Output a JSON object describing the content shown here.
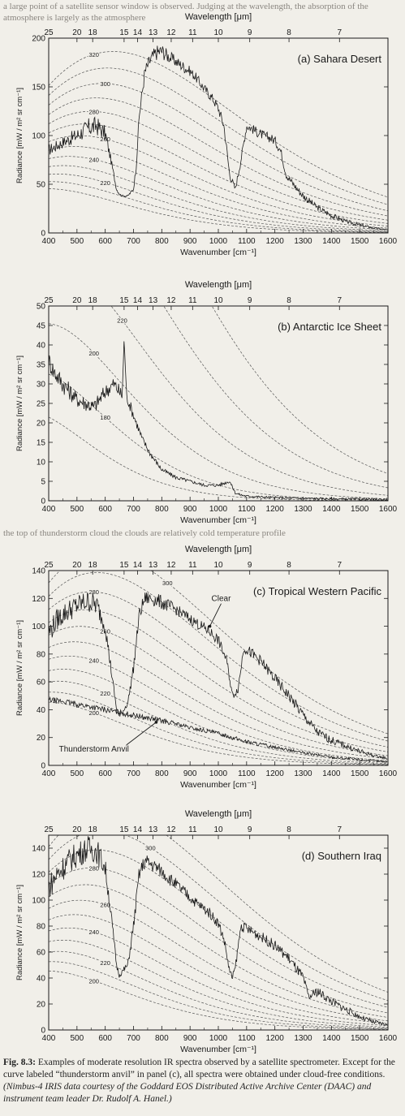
{
  "background_text": {
    "page_top": "a large point of a satellite sensor window is observed. Judging at the wavelength, the absorption of the atmosphere is largely as the atmosphere",
    "between_bc": "the top of thunderstorm cloud the clouds are relatively cold temperature profile"
  },
  "caption": {
    "figure_label": "Fig. 8.3:",
    "text": " Examples of moderate resolution IR spectra observed by a satellite spectrometer. Except for the curve labeled “thunderstorm anvil” in panel (c), all spectra were obtained under cloud-free conditions. ",
    "credit": "(Nimbus-4 IRIS data courtesy of the Goddard EOS Distributed Active Archive Center (DAAC) and instrument team leader Dr. Rudolf A. Hanel.)"
  },
  "colors": {
    "background": "#f1efe9",
    "ink": "#1a1a1a",
    "guide": "#555555"
  },
  "chart_data": [
    {
      "type": "line",
      "title": "(a) Sahara Desert",
      "xlabel": "Wavenumber [cm⁻¹]",
      "ylabel": "Radiance [mW / m² sr cm⁻¹]",
      "top_axis_label": "Wavelength [μm]",
      "xlim": [
        400,
        1600
      ],
      "ylim": [
        0,
        200
      ],
      "x_ticks": [
        400,
        500,
        600,
        700,
        800,
        900,
        1000,
        1100,
        1200,
        1300,
        1400,
        1500,
        1600
      ],
      "y_ticks": [
        0,
        50,
        100,
        150,
        200
      ],
      "wavelength_ticks": [
        25,
        20,
        18,
        15,
        14,
        13,
        12,
        11,
        10,
        9,
        8,
        7
      ],
      "blackbody_temps_K": [
        200,
        210,
        220,
        230,
        240,
        250,
        260,
        270,
        280,
        290,
        300,
        310,
        320
      ],
      "blackbody_labels": [
        "220",
        "240",
        "260",
        "280",
        "300",
        "320"
      ],
      "grid": false,
      "series": [
        {
          "x": [
            400,
            450,
            500,
            540,
            570,
            600,
            620,
            640,
            650,
            660,
            680,
            700,
            710,
            720,
            740,
            760,
            780,
            800,
            820,
            840,
            860,
            880,
            900,
            920,
            940,
            960,
            980,
            1000,
            1020,
            1040,
            1060,
            1080,
            1100,
            1120,
            1140,
            1160,
            1180,
            1200,
            1220,
            1240,
            1260,
            1280,
            1300,
            1350,
            1400,
            1450,
            1500,
            1550,
            1600
          ],
          "y": [
            85,
            93,
            100,
            108,
            110,
            102,
            75,
            45,
            40,
            38,
            38,
            45,
            70,
            120,
            165,
            178,
            185,
            187,
            182,
            178,
            174,
            170,
            166,
            160,
            152,
            145,
            138,
            128,
            110,
            60,
            45,
            75,
            110,
            107,
            103,
            100,
            98,
            95,
            85,
            60,
            52,
            45,
            38,
            26,
            18,
            12,
            8,
            5,
            3
          ],
          "noise_amp": [
            6,
            6,
            8,
            10,
            10,
            8,
            4,
            2,
            1,
            1,
            1,
            2,
            4,
            6,
            8,
            8,
            8,
            8,
            7,
            6,
            6,
            6,
            5,
            5,
            5,
            5,
            5,
            5,
            6,
            4,
            3,
            4,
            5,
            5,
            5,
            5,
            5,
            5,
            5,
            4,
            4,
            4,
            4,
            3,
            3,
            2,
            2,
            1,
            1
          ]
        }
      ],
      "annotations": []
    },
    {
      "type": "line",
      "title": "(b) Antarctic Ice Sheet",
      "xlabel": "Wavenumber [cm⁻¹]",
      "ylabel": "Radiance [mW / m² sr cm⁻¹]",
      "top_axis_label": "Wavelength [μm]",
      "xlim": [
        400,
        1600
      ],
      "ylim": [
        0,
        50
      ],
      "x_ticks": [
        400,
        500,
        600,
        700,
        800,
        900,
        1000,
        1100,
        1200,
        1300,
        1400,
        1500,
        1600
      ],
      "y_ticks": [
        0,
        5,
        10,
        15,
        20,
        25,
        30,
        35,
        40,
        45,
        50
      ],
      "wavelength_ticks": [
        25,
        20,
        18,
        15,
        14,
        13,
        12,
        11,
        10,
        9,
        8,
        7
      ],
      "blackbody_temps_K": [
        160,
        180,
        200,
        220,
        240,
        260
      ],
      "blackbody_labels": [
        "180",
        "200",
        "220"
      ],
      "grid": false,
      "series": [
        {
          "x": [
            400,
            420,
            450,
            500,
            530,
            560,
            600,
            630,
            650,
            660,
            667,
            675,
            690,
            710,
            730,
            760,
            800,
            850,
            900,
            950,
            1000,
            1040,
            1060,
            1080,
            1100,
            1150,
            1200,
            1300,
            1400,
            1500,
            1600
          ],
          "y": [
            36,
            33,
            30,
            26,
            25,
            24,
            28,
            30,
            28,
            27,
            42,
            27,
            24,
            20,
            16,
            12,
            8,
            6,
            5,
            4,
            4,
            5,
            2,
            1.5,
            1.2,
            1,
            0.8,
            0.6,
            0.5,
            0.4,
            0.3
          ],
          "noise_amp": [
            2.5,
            2.5,
            2.5,
            2,
            2,
            2,
            2,
            2,
            2,
            2,
            0.5,
            1.5,
            1.5,
            1.2,
            1,
            0.8,
            0.6,
            0.5,
            0.4,
            0.4,
            0.4,
            0.4,
            0.3,
            0.3,
            0.3,
            0.3,
            0.3,
            0.3,
            0.3,
            0.3,
            0.3
          ]
        }
      ],
      "annotations": []
    },
    {
      "type": "line",
      "title": "(c) Tropical Western Pacific",
      "xlabel": "Wavenumber [cm⁻¹]",
      "ylabel": "Radiance [mW / m² sr cm⁻¹]",
      "top_axis_label": "Wavelength [μm]",
      "xlim": [
        400,
        1600
      ],
      "ylim": [
        0,
        140
      ],
      "x_ticks": [
        400,
        500,
        600,
        700,
        800,
        900,
        1000,
        1100,
        1200,
        1300,
        1400,
        1500,
        1600
      ],
      "y_ticks": [
        0,
        20,
        40,
        60,
        80,
        100,
        120,
        140
      ],
      "wavelength_ticks": [
        25,
        20,
        18,
        15,
        14,
        13,
        12,
        11,
        10,
        9,
        8,
        7
      ],
      "blackbody_temps_K": [
        200,
        210,
        220,
        230,
        240,
        250,
        260,
        270,
        280,
        290,
        300
      ],
      "blackbody_labels": [
        "200",
        "220",
        "240",
        "260",
        "280",
        "300"
      ],
      "grid": false,
      "series": [
        {
          "name": "Clear",
          "x": [
            400,
            430,
            460,
            500,
            540,
            570,
            600,
            620,
            640,
            650,
            660,
            680,
            700,
            720,
            740,
            760,
            790,
            820,
            850,
            880,
            910,
            940,
            970,
            1000,
            1030,
            1050,
            1070,
            1090,
            1120,
            1150,
            1200,
            1250,
            1300,
            1350,
            1400,
            1450,
            1500,
            1550,
            1600
          ],
          "y": [
            95,
            105,
            110,
            115,
            118,
            115,
            100,
            70,
            40,
            35,
            38,
            45,
            70,
            108,
            120,
            120,
            118,
            115,
            112,
            108,
            104,
            100,
            96,
            90,
            75,
            50,
            55,
            85,
            80,
            75,
            62,
            50,
            36,
            24,
            18,
            14,
            10,
            7,
            5
          ],
          "noise_amp": [
            8,
            8,
            8,
            8,
            8,
            8,
            6,
            4,
            2,
            1,
            2,
            2,
            4,
            5,
            5,
            5,
            5,
            5,
            4,
            4,
            4,
            4,
            4,
            4,
            3,
            3,
            3,
            4,
            4,
            4,
            4,
            4,
            4,
            3,
            3,
            2,
            2,
            1,
            1
          ]
        },
        {
          "name": "Thunderstorm Anvil",
          "x": [
            400,
            450,
            500,
            550,
            600,
            650,
            700,
            750,
            800,
            850,
            900,
            950,
            1000,
            1050,
            1100,
            1150,
            1200,
            1300,
            1400,
            1500,
            1600
          ],
          "y": [
            47,
            46,
            44,
            42,
            40,
            38,
            36,
            34,
            32,
            30,
            27,
            25,
            23,
            20,
            17,
            15,
            13,
            9,
            6,
            4,
            2.5
          ],
          "noise_amp": [
            2,
            2,
            2,
            2,
            2,
            2,
            2,
            2,
            2,
            1.5,
            1.5,
            1.5,
            1.5,
            1.5,
            1.5,
            1.5,
            1,
            1,
            1,
            1,
            0.5
          ]
        }
      ],
      "annotations": [
        {
          "text": "Clear",
          "x": 1010,
          "y": 118,
          "arrow_to": [
            970,
            100
          ]
        },
        {
          "text": "Thunderstorm Anvil",
          "x": 560,
          "y": 10,
          "arrow_to": [
            780,
            31
          ]
        }
      ]
    },
    {
      "type": "line",
      "title": "(d) Southern Iraq",
      "xlabel": "Wavenumber [cm⁻¹]",
      "ylabel": "Radiance [mW / m² sr cm⁻¹]",
      "top_axis_label": "Wavelength [μm]",
      "xlim": [
        400,
        1600
      ],
      "ylim": [
        0,
        150
      ],
      "x_ticks": [
        400,
        500,
        600,
        700,
        800,
        900,
        1000,
        1100,
        1200,
        1300,
        1400,
        1500,
        1600
      ],
      "y_ticks": [
        0,
        20,
        40,
        60,
        80,
        100,
        120,
        140
      ],
      "wavelength_ticks": [
        25,
        20,
        18,
        15,
        14,
        13,
        12,
        11,
        10,
        9,
        8,
        7
      ],
      "blackbody_temps_K": [
        200,
        210,
        220,
        230,
        240,
        250,
        260,
        270,
        280,
        290,
        300,
        310
      ],
      "blackbody_labels": [
        "200",
        "220",
        "240",
        "260",
        "280",
        "300"
      ],
      "grid": false,
      "series": [
        {
          "x": [
            400,
            430,
            470,
            500,
            540,
            570,
            600,
            620,
            640,
            650,
            660,
            680,
            700,
            720,
            740,
            760,
            790,
            820,
            850,
            880,
            910,
            940,
            970,
            1000,
            1020,
            1040,
            1050,
            1060,
            1080,
            1100,
            1150,
            1200,
            1250,
            1300,
            1320,
            1350,
            1400,
            1450,
            1500,
            1550,
            1600
          ],
          "y": [
            110,
            120,
            130,
            135,
            140,
            138,
            125,
            90,
            50,
            42,
            45,
            50,
            80,
            120,
            130,
            128,
            124,
            118,
            112,
            106,
            100,
            95,
            90,
            82,
            70,
            45,
            40,
            48,
            80,
            78,
            72,
            65,
            55,
            40,
            25,
            30,
            22,
            16,
            10,
            6,
            4
          ],
          "noise_amp": [
            10,
            10,
            10,
            10,
            10,
            10,
            8,
            5,
            3,
            2,
            2,
            3,
            5,
            6,
            6,
            6,
            5,
            5,
            5,
            5,
            4,
            4,
            4,
            4,
            4,
            3,
            3,
            3,
            4,
            4,
            4,
            4,
            4,
            4,
            3,
            4,
            3,
            3,
            2,
            2,
            1
          ]
        }
      ],
      "annotations": []
    }
  ]
}
